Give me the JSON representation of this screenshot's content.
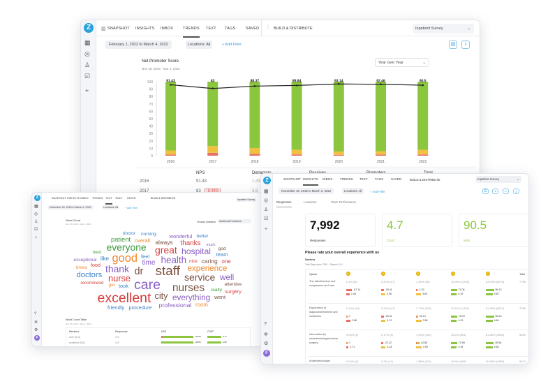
{
  "colors": {
    "brand": "#29a3dc",
    "promoters": "#8cc63f",
    "passives": "#f0c040",
    "detractors": "#e8706a",
    "line": "#222222",
    "positive": "#8cc63f"
  },
  "main": {
    "logo": "Z",
    "nav": [
      "Snapshot",
      "Insights",
      "Inbox",
      "Trends",
      "Text",
      "Tags",
      "Saved"
    ],
    "active_nav": "Trends",
    "build": "Build & Distribute",
    "survey": "Inpatient Survey",
    "date_range": "February 1, 2022 to March 4, 2022",
    "locations": "Locations: All",
    "add_filter": "+ Add Filter",
    "compare_select": "Year over Year",
    "table": {
      "headers": [
        "NPS",
        "Detractors",
        "Passives",
        "Promoters",
        "Total"
      ],
      "rows": [
        {
          "year": "2016",
          "nps": "91.43",
          "detractors": "1.43"
        },
        {
          "year": "2017",
          "nps": "83",
          "change": "-8.43%",
          "detractors": "3.9"
        }
      ]
    }
  },
  "chart_data": {
    "type": "bar",
    "title": "Net Promoter Score",
    "subtitle": "Nov 16, 2016 - Mar 4, 2022",
    "categories": [
      "2016",
      "2017",
      "2018",
      "2019",
      "2020",
      "2021",
      "2022"
    ],
    "ylim": [
      0,
      100
    ],
    "yticks": [
      0,
      10,
      20,
      30,
      40,
      50,
      60,
      70,
      80,
      90,
      100
    ],
    "stacked": true,
    "grid": false,
    "series": [
      {
        "name": "Detractors",
        "values": [
          1.4,
          3.9,
          2.5,
          1.7,
          1.2,
          1.4,
          1.6
        ]
      },
      {
        "name": "Passives",
        "values": [
          5.7,
          9.2,
          7.9,
          6.4,
          4.5,
          4.7,
          6.3
        ]
      },
      {
        "name": "Promoters",
        "values": [
          92.9,
          86.9,
          89.6,
          91.9,
          94.3,
          93.9,
          92.1
        ]
      }
    ],
    "line": {
      "name": "NPS",
      "values": [
        91.43,
        83,
        88.37,
        89.84,
        93.14,
        92.46,
        90.5
      ]
    },
    "data_labels": [
      "91.43",
      "83",
      "88.37",
      "89.84",
      "93.14",
      "92.46",
      "90.5"
    ]
  },
  "left": {
    "logo": "Z",
    "nav": [
      "Snapshot",
      "Insights",
      "Inbox",
      "Trends",
      "Text",
      "Tags",
      "Saved"
    ],
    "active_nav": "Text",
    "build": "Build & Distribute",
    "survey": "Inpatient Survey",
    "date_range": "November 16, 2016 to March 4, 2022",
    "locations": "Locations: All",
    "add_filter": "+ Add Filter",
    "word_cloud_title": "Word Cloud",
    "word_cloud_sub": "Nov 16, 2016 - Mar 4, 2022",
    "choose_question_label": "Choose Question",
    "choose_question_value": "Additional Feedback",
    "avatar": "F",
    "word_cloud": {
      "words": [
        {
          "text": "doctor",
          "color": "#3a7fc4"
        },
        {
          "text": "nursing",
          "color": "#3a7fc4"
        },
        {
          "text": "wonderful",
          "color": "#8a5cc4"
        },
        {
          "text": "better",
          "color": "#3a7fc4"
        },
        {
          "text": "patient",
          "color": "#3a9a3a"
        },
        {
          "text": "overall",
          "color": "#f08a30"
        },
        {
          "text": "everyone",
          "color": "#3a9a3a"
        },
        {
          "text": "always",
          "color": "#7a5040"
        },
        {
          "text": "thanks",
          "color": "#d63a3a"
        },
        {
          "text": "much",
          "color": "#8a5cc4"
        },
        {
          "text": "god",
          "color": "#7a5040"
        },
        {
          "text": "best",
          "color": "#3a9a3a"
        },
        {
          "text": "good",
          "color": "#f08a30"
        },
        {
          "text": "great",
          "color": "#d63a3a"
        },
        {
          "text": "hospital",
          "color": "#8a5cc4"
        },
        {
          "text": "team",
          "color": "#3a7fc4"
        },
        {
          "text": "exceptional",
          "color": "#8a5cc4"
        },
        {
          "text": "like",
          "color": "#3a7fc4"
        },
        {
          "text": "feel",
          "color": "#3a7fc4"
        },
        {
          "text": "health",
          "color": "#8a5cc4"
        },
        {
          "text": "nice",
          "color": "#d63a3a"
        },
        {
          "text": "caring",
          "color": "#7a5040"
        },
        {
          "text": "one",
          "color": "#d63a3a"
        },
        {
          "text": "times",
          "color": "#f08a30"
        },
        {
          "text": "food",
          "color": "#d63a3a"
        },
        {
          "text": "thank",
          "color": "#8a5cc4"
        },
        {
          "text": "time",
          "color": "#8a5cc4"
        },
        {
          "text": "dr",
          "color": "#7a5040"
        },
        {
          "text": "staff",
          "color": "#7a5040"
        },
        {
          "text": "experience",
          "color": "#f08a30"
        },
        {
          "text": "doctors",
          "color": "#3a7fc4"
        },
        {
          "text": "nurse",
          "color": "#d63a3a"
        },
        {
          "text": "service",
          "color": "#7a5040"
        },
        {
          "text": "well",
          "color": "#8a5cc4"
        },
        {
          "text": "recommend",
          "color": "#d63a3a"
        },
        {
          "text": "get",
          "color": "#f08a30"
        },
        {
          "text": "took",
          "color": "#3a7fc4"
        },
        {
          "text": "care",
          "color": "#8a5cc4"
        },
        {
          "text": "nurses",
          "color": "#7a5040"
        },
        {
          "text": "attentive",
          "color": "#7a5040"
        },
        {
          "text": "excellent",
          "color": "#d63a3a"
        },
        {
          "text": "city",
          "color": "#7a5040"
        },
        {
          "text": "everything",
          "color": "#8a5cc4"
        },
        {
          "text": "really",
          "color": "#3a9a3a"
        },
        {
          "text": "surgery",
          "color": "#d63a3a"
        },
        {
          "text": "went",
          "color": "#7a5040"
        },
        {
          "text": "friendly",
          "color": "#3a7fc4"
        },
        {
          "text": "procedure",
          "color": "#3a7fc4"
        },
        {
          "text": "professional",
          "color": "#8a5cc4"
        },
        {
          "text": "room",
          "color": "#f08a30"
        }
      ]
    },
    "word_table": {
      "title": "Word Count Table",
      "sub": "Nov 16, 2016 - Mar 4, 2022",
      "headers": [
        "Mentions",
        "Responses",
        "NPS",
        "CSAT"
      ],
      "rows": [
        {
          "mention": "care (574)",
          "responses": "545",
          "nps": "96.98",
          "csat": "4.77"
        },
        {
          "mention": "excellent (562)",
          "responses": "545",
          "nps": "98.80",
          "csat": "4.82"
        }
      ]
    }
  },
  "right": {
    "logo": "Z",
    "nav": [
      "Snapshot",
      "Insights",
      "Inbox",
      "Trends",
      "Text",
      "Tags",
      "Saved"
    ],
    "active_nav": "Insights",
    "build": "Build & Distribute",
    "survey": "Inpatient Survey",
    "date_range": "November 16, 2016 to March 3, 2022",
    "locations": "Locations: All",
    "add_filter": "+ Add Filter",
    "tabs": [
      "Responses",
      "Locations",
      "Team Performance"
    ],
    "active_tab": "Responses",
    "kpis": [
      {
        "value": "7,992",
        "label": "Responses"
      },
      {
        "value": "4.7",
        "label": "CSAT"
      },
      {
        "value": "90.5",
        "label": "NPS"
      }
    ],
    "question": "Please rate your overall experience with us",
    "group": "Doctors",
    "group_meta": "Total Responses: 7851 · Skipped: 141",
    "avatar": "F",
    "table": {
      "headers": [
        "Option",
        "Total",
        "Avg. Score"
      ],
      "rows": [
        {
          "option": "The attentiveness and compassion and care",
          "pcts": [
            "0.1% (8)",
            "0.22% (17)",
            "1.26% (98)",
            "15.39% (1200)",
            "83.03% (6475)"
          ],
          "total": "7798",
          "avg": "4.81",
          "nps": [
            "-67.14",
            "-29.41",
            "-1.02",
            "71.06",
            "96.13"
          ],
          "csat": [
            "2.44",
            "3.08",
            "3.64",
            "4.15",
            "4.82"
          ]
        },
        {
          "option": "Explanation of diagnosis/treatment and medicines",
          "pcts": [
            "0.14% (10)",
            "0.24% (17)",
            "1.73% (123)",
            "15.91% (1129)",
            "81.98% (5817)"
          ],
          "total": "7096",
          "avg": "4.79",
          "nps": [
            "0",
            "-29.41",
            "25.21",
            "76.07",
            "96.23"
          ],
          "csat": [
            "2.88",
            "3.13",
            "3.84",
            "4.19",
            "4.84"
          ]
        },
        {
          "option": "Information by anaesthesiologist before surgery",
          "pcts": [
            "0.06% (3)",
            "0.17% (9)",
            "1.93% (105)",
            "16.4% (894)",
            "81.45% (4439)"
          ],
          "total": "5450",
          "avg": "4.79",
          "nps": [
            "0",
            "-22.22",
            "42.85",
            "73.59",
            "95.54"
          ],
          "csat": [
            "1.71",
            "3.18",
            "3.93",
            "4.16",
            "4.83"
          ]
        },
        {
          "option": "Anaesthesiologist explanation/answers to",
          "pcts": [
            "0.04% (2)",
            "0.2% (11)",
            "1.88% (101)",
            "16.9% (908)",
            "80.98% (4352)"
          ],
          "total": "5374",
          "avg": "4.79"
        }
      ]
    }
  }
}
